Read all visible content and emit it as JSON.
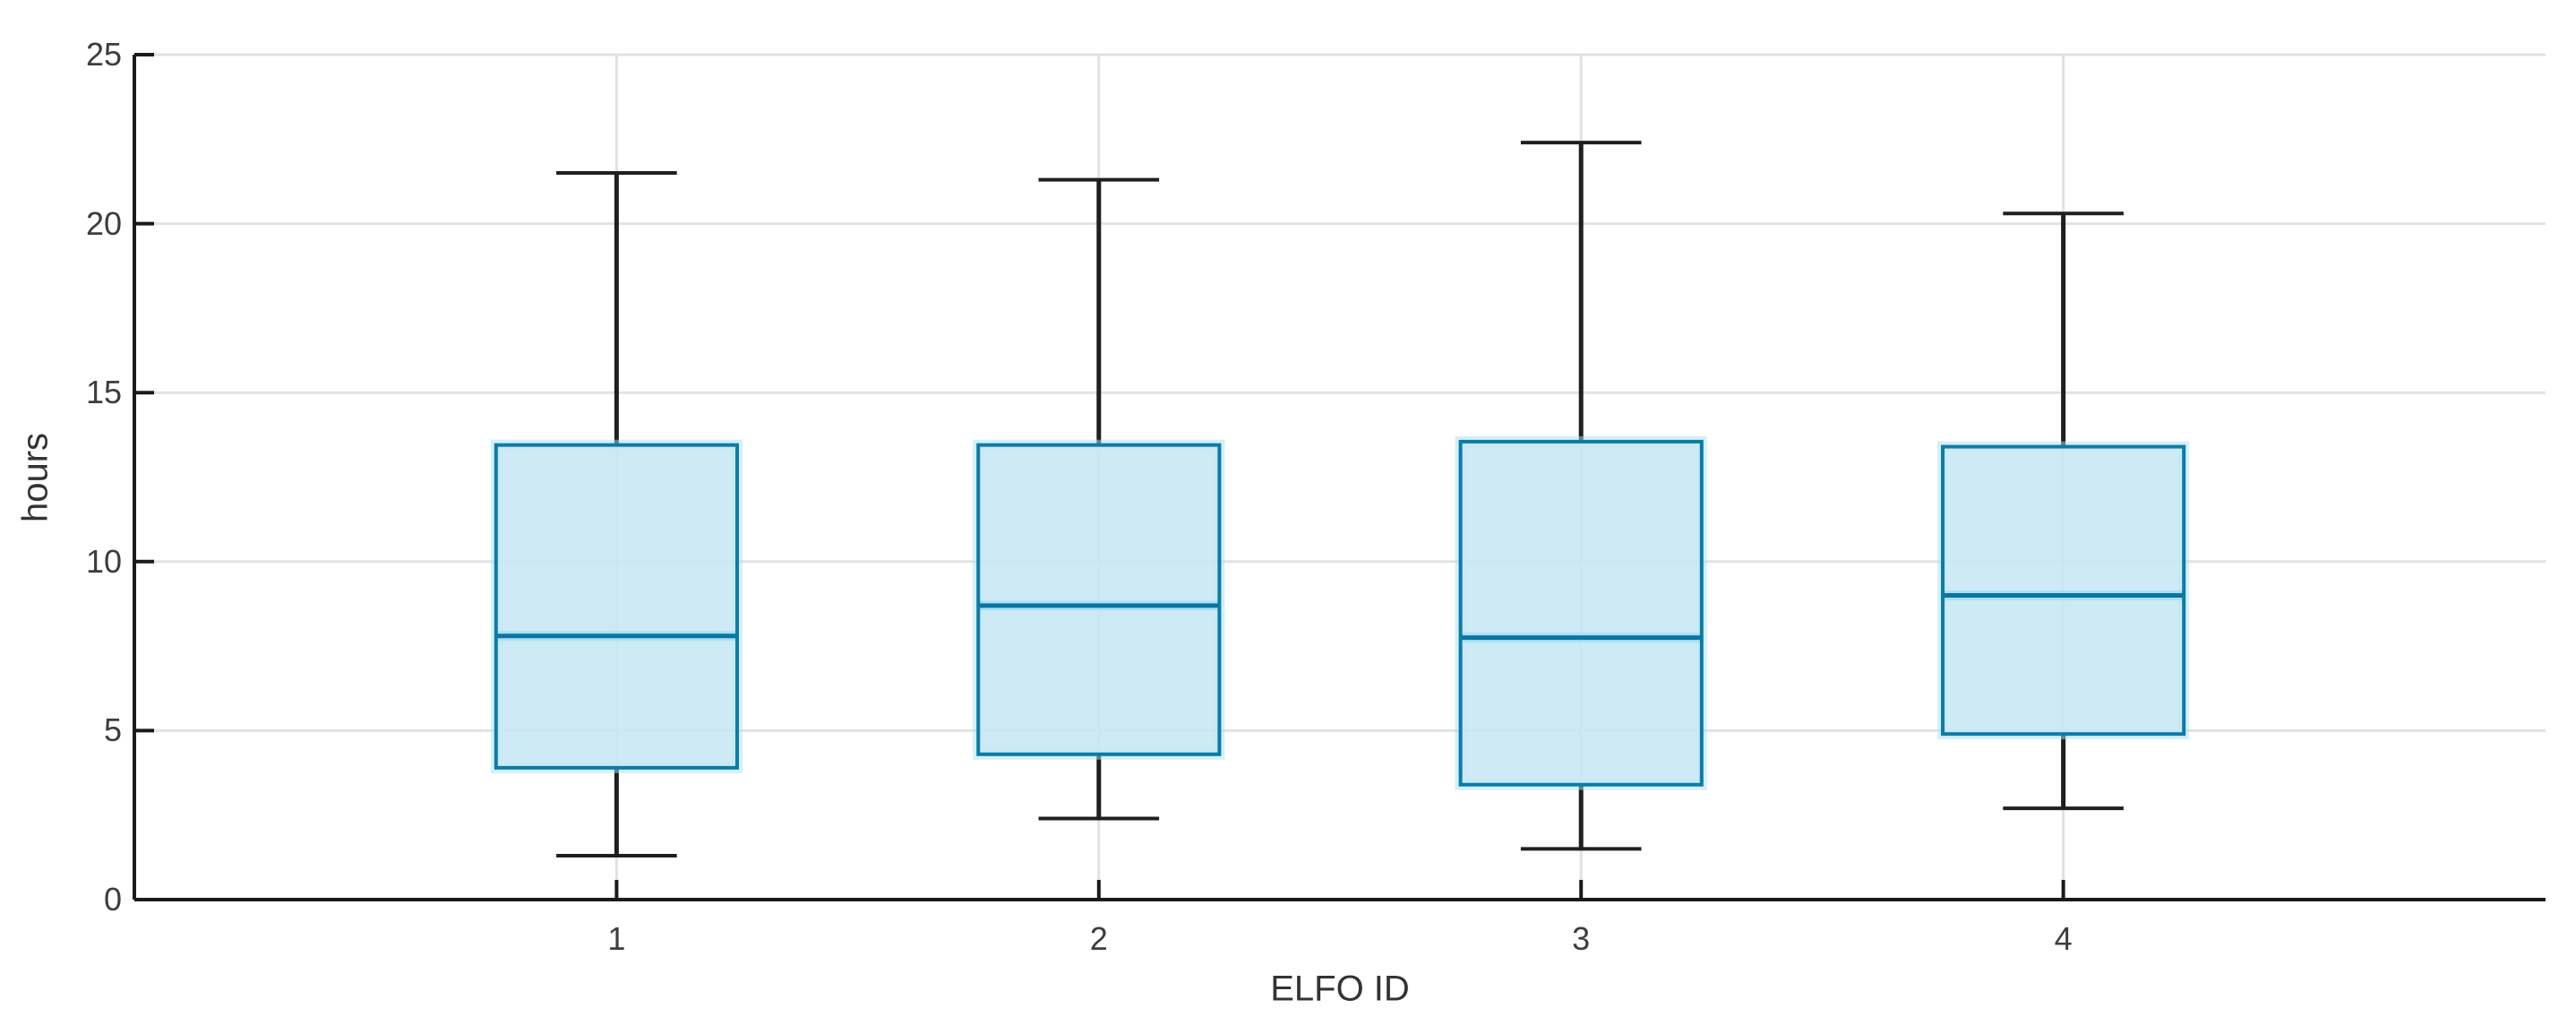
{
  "chart_data": {
    "type": "boxplot",
    "title": "",
    "xlabel": "ELFO ID",
    "ylabel": "hours",
    "categories": [
      "1",
      "2",
      "3",
      "4"
    ],
    "ylim": [
      0,
      25
    ],
    "yticks": [
      0,
      5,
      10,
      15,
      20,
      25
    ],
    "grid": true,
    "legend": "none",
    "series": [
      {
        "category": "1",
        "whisker_low": 1.3,
        "q1": 3.9,
        "median": 7.8,
        "q3": 13.45,
        "whisker_high": 21.5
      },
      {
        "category": "2",
        "whisker_low": 2.4,
        "q1": 4.3,
        "median": 8.7,
        "q3": 13.45,
        "whisker_high": 21.3
      },
      {
        "category": "3",
        "whisker_low": 1.5,
        "q1": 3.4,
        "median": 7.75,
        "q3": 13.55,
        "whisker_high": 22.4
      },
      {
        "category": "4",
        "whisker_low": 2.7,
        "q1": 4.9,
        "median": 9.0,
        "q3": 13.4,
        "whisker_high": 20.3
      }
    ],
    "colors": {
      "background": "#ffffff",
      "box_fill": "#c7e7f4",
      "box_edge": "#0b7ca8",
      "box_halo": "#a9e2f3",
      "median": "#0a74a6",
      "whisker": "#1f1f1f",
      "axis": "#1a1a1a",
      "grid": "#e2e2e2",
      "tick_label": "#3d3d3d"
    }
  }
}
